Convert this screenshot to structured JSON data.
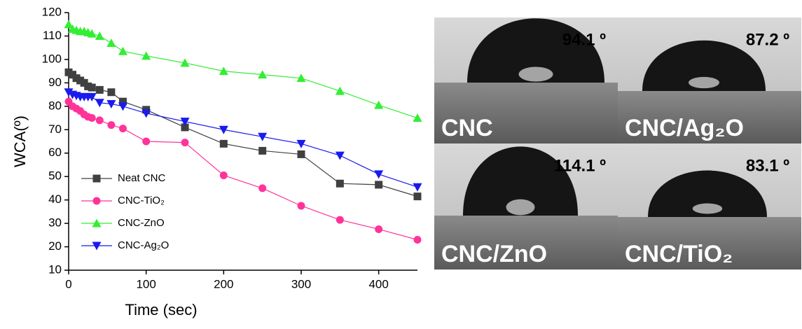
{
  "chart_data": {
    "type": "line",
    "x_label": "Time (sec)",
    "y_label": "WCA(º)",
    "x": [
      0,
      5,
      10,
      15,
      20,
      25,
      30,
      40,
      55,
      70,
      100,
      150,
      200,
      250,
      300,
      350,
      400,
      450
    ],
    "xlim": [
      0,
      450
    ],
    "xticks": [
      0,
      100,
      200,
      300,
      400
    ],
    "ylim": [
      10,
      120
    ],
    "yticks": [
      10,
      20,
      30,
      40,
      50,
      60,
      70,
      80,
      90,
      100,
      110,
      120
    ],
    "series": [
      {
        "name": "Neat CNC",
        "color": "#404040",
        "marker": "square",
        "values": [
          94.5,
          93.5,
          92,
          91,
          90,
          88.5,
          88,
          87,
          86,
          82,
          78.5,
          71,
          64,
          61,
          59.5,
          47,
          46.5,
          41.5
        ]
      },
      {
        "name": "CNC-TiO₂",
        "color": "#ff3399",
        "marker": "circle",
        "values": [
          82,
          80,
          79,
          78,
          76.5,
          75.5,
          75,
          74,
          72,
          70.5,
          65,
          64.5,
          50.5,
          45,
          37.5,
          31.5,
          27.5,
          23
        ]
      },
      {
        "name": "CNC-ZnO",
        "color": "#33ee33",
        "marker": "triangle-up",
        "values": [
          115,
          113,
          112.5,
          112,
          112,
          111.5,
          111,
          110,
          107,
          103.5,
          101.5,
          98.5,
          95,
          93.5,
          92,
          86.5,
          80.5,
          75
        ]
      },
      {
        "name": "CNC-Ag₂O",
        "color": "#1a1aee",
        "marker": "triangle-down",
        "values": [
          86,
          85,
          84.5,
          84,
          84,
          84,
          84,
          81.5,
          81,
          80,
          77,
          73.5,
          70,
          67,
          64,
          59,
          51,
          45.5
        ]
      }
    ]
  },
  "photos": [
    {
      "label": "CNC",
      "angle": "94.1 º"
    },
    {
      "label": "CNC/Ag₂O",
      "angle": "87.2 º"
    },
    {
      "label": "CNC/ZnO",
      "angle": "114.1 º"
    },
    {
      "label": "CNC/TiO₂",
      "angle": "83.1 º"
    }
  ]
}
